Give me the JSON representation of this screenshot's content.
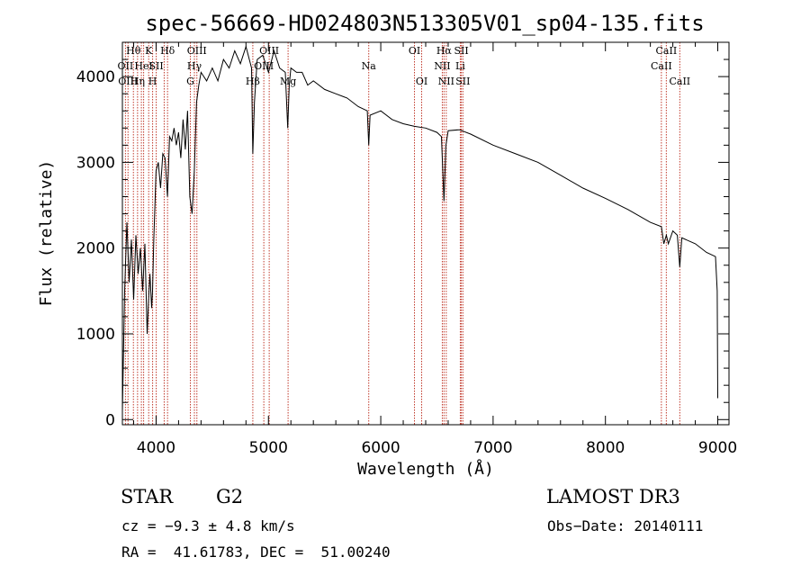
{
  "chart_data": {
    "type": "line",
    "title": "spec-56669-HD024803N513305V01_sp04-135.fits",
    "xlabel": "Wavelength (Å)",
    "ylabel": "Flux (relative)",
    "xlim": [
      3700,
      9100
    ],
    "ylim": [
      -60,
      4400
    ],
    "xticks": [
      4000,
      5000,
      6000,
      7000,
      8000,
      9000
    ],
    "yticks": [
      0,
      1000,
      2000,
      3000,
      4000
    ],
    "series": [
      {
        "name": "flux",
        "x": [
          3700,
          3720,
          3740,
          3760,
          3780,
          3800,
          3820,
          3840,
          3860,
          3880,
          3900,
          3920,
          3933,
          3945,
          3960,
          3968,
          3980,
          4000,
          4020,
          4040,
          4060,
          4080,
          4101,
          4120,
          4140,
          4160,
          4180,
          4200,
          4220,
          4240,
          4260,
          4280,
          4300,
          4310,
          4320,
          4340,
          4360,
          4380,
          4400,
          4450,
          4500,
          4550,
          4600,
          4650,
          4700,
          4750,
          4800,
          4850,
          4861,
          4875,
          4900,
          4950,
          5000,
          5050,
          5100,
          5150,
          5172,
          5185,
          5200,
          5250,
          5300,
          5350,
          5400,
          5500,
          5600,
          5700,
          5800,
          5880,
          5893,
          5905,
          6000,
          6100,
          6200,
          6300,
          6400,
          6500,
          6540,
          6563,
          6580,
          6600,
          6700,
          6800,
          7000,
          7200,
          7400,
          7600,
          7800,
          8000,
          8200,
          8400,
          8498,
          8520,
          8542,
          8560,
          8600,
          8640,
          8662,
          8680,
          8800,
          8900,
          8980,
          8995,
          9000
        ],
        "y": [
          100,
          1500,
          2300,
          1600,
          2100,
          1400,
          2150,
          1700,
          2000,
          1500,
          2050,
          1000,
          1400,
          1700,
          1300,
          1500,
          2100,
          2900,
          3000,
          2700,
          3100,
          3050,
          2600,
          3300,
          3250,
          3400,
          3200,
          3350,
          3050,
          3500,
          3150,
          3600,
          2600,
          2500,
          2400,
          2900,
          3700,
          3900,
          4050,
          3950,
          4100,
          3950,
          4200,
          4100,
          4300,
          4150,
          4350,
          4100,
          3100,
          3700,
          4200,
          4250,
          4050,
          4300,
          4100,
          4050,
          3400,
          3900,
          4100,
          4050,
          4050,
          3900,
          3950,
          3850,
          3800,
          3750,
          3650,
          3600,
          3200,
          3550,
          3600,
          3500,
          3450,
          3420,
          3400,
          3350,
          3300,
          2550,
          3200,
          3370,
          3380,
          3330,
          3200,
          3100,
          3000,
          2850,
          2700,
          2580,
          2450,
          2300,
          2250,
          2050,
          2150,
          2050,
          2200,
          2150,
          1780,
          2120,
          2050,
          1950,
          1900,
          1500,
          250
        ]
      }
    ],
    "line_markers": [
      {
        "wl": 3727,
        "label": "OII",
        "row": 2
      },
      {
        "wl": 3750,
        "label": "OIII",
        "row": 3
      },
      {
        "wl": 3798,
        "label": "Hθ",
        "row": 1
      },
      {
        "wl": 3835,
        "label": "Hη",
        "row": 3
      },
      {
        "wl": 3869,
        "label": "",
        "row": 0
      },
      {
        "wl": 3889,
        "label": "HeI",
        "row": 2
      },
      {
        "wl": 3934,
        "label": "K",
        "row": 1
      },
      {
        "wl": 3969,
        "label": "H",
        "row": 3
      },
      {
        "wl": 4001,
        "label": "SII",
        "row": 2
      },
      {
        "wl": 4072,
        "label": "",
        "row": 0
      },
      {
        "wl": 4102,
        "label": "Hδ",
        "row": 1
      },
      {
        "wl": 4305,
        "label": "G",
        "row": 3
      },
      {
        "wl": 4341,
        "label": "Hγ",
        "row": 2
      },
      {
        "wl": 4363,
        "label": "OIII",
        "row": 1
      },
      {
        "wl": 4861,
        "label": "Hβ",
        "row": 3
      },
      {
        "wl": 4959,
        "label": "OIII",
        "row": 2
      },
      {
        "wl": 5007,
        "label": "OIII",
        "row": 1
      },
      {
        "wl": 5175,
        "label": "Mg",
        "row": 3
      },
      {
        "wl": 5893,
        "label": "Na",
        "row": 2
      },
      {
        "wl": 6300,
        "label": "OI",
        "row": 1
      },
      {
        "wl": 6364,
        "label": "OI",
        "row": 3
      },
      {
        "wl": 6548,
        "label": "NII",
        "row": 2
      },
      {
        "wl": 6563,
        "label": "Hα",
        "row": 1
      },
      {
        "wl": 6583,
        "label": "NII",
        "row": 3
      },
      {
        "wl": 6708,
        "label": "Li",
        "row": 2
      },
      {
        "wl": 6717,
        "label": "SII",
        "row": 1
      },
      {
        "wl": 6731,
        "label": "SII",
        "row": 3
      },
      {
        "wl": 8498,
        "label": "CaII",
        "row": 2
      },
      {
        "wl": 8542,
        "label": "CaII",
        "row": 1
      },
      {
        "wl": 8662,
        "label": "CaII",
        "row": 3
      }
    ]
  },
  "info": {
    "object_type": "STAR",
    "subclass": "G2",
    "survey": "LAMOST DR3",
    "cz": "cz = −9.3 ± 4.8 km/s",
    "obs_date": "Obs−Date: 20140111",
    "coords": "RA =  41.61783, DEC =  51.00240"
  }
}
